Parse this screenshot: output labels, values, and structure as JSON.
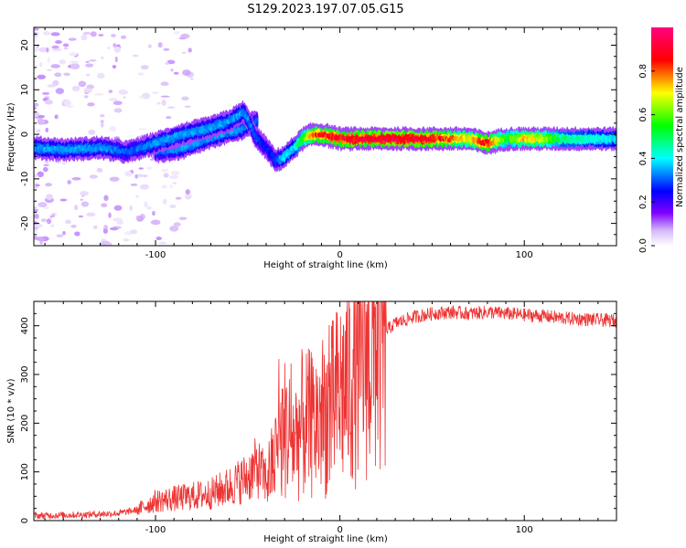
{
  "title": "S129.2023.197.07.05.G15",
  "chart_data": [
    {
      "type": "heatmap",
      "xlabel": "Height of straight line (km)",
      "ylabel": "Frequency (Hz)",
      "xlim": [
        -166,
        150
      ],
      "ylim": [
        -25,
        24
      ],
      "xticks": [
        -100,
        0,
        100
      ],
      "yticks": [
        -20,
        -10,
        0,
        10,
        20
      ],
      "colorbar": {
        "label": "Normalized spectral amplitude",
        "range": [
          0,
          1
        ],
        "ticks": [
          0.0,
          0.2,
          0.4,
          0.6,
          0.8
        ]
      },
      "ridge": {
        "x": [
          -166,
          -150,
          -130,
          -115,
          -100,
          -85,
          -70,
          -60,
          -52,
          -45,
          -40,
          -35,
          -30,
          -25,
          -20,
          -15,
          -10,
          0,
          10,
          30,
          50,
          70,
          80,
          90,
          100,
          110,
          120,
          150
        ],
        "y": [
          -3,
          -3.5,
          -3,
          -4,
          -2,
          0,
          1.5,
          3,
          5,
          -1,
          -3,
          -6,
          -5,
          -3,
          -1,
          0,
          0,
          -1,
          -1,
          -1,
          -1,
          -1,
          -2,
          -1,
          -1,
          -1,
          -1,
          -1
        ],
        "amplitude": [
          0.35,
          0.35,
          0.35,
          0.3,
          0.35,
          0.35,
          0.35,
          0.35,
          0.35,
          0.3,
          0.25,
          0.3,
          0.4,
          0.4,
          0.6,
          0.8,
          0.85,
          0.9,
          0.9,
          0.95,
          0.9,
          0.7,
          0.9,
          0.55,
          0.75,
          0.7,
          0.5,
          0.4
        ]
      },
      "branch": {
        "x": [
          -100,
          -85,
          -75,
          -65,
          -55,
          -45
        ],
        "y": [
          -4,
          -3,
          -1.5,
          0,
          1,
          3
        ],
        "amplitude": [
          0.3,
          0.35,
          0.35,
          0.35,
          0.35,
          0.3
        ]
      },
      "noise_region_x": [
        -166,
        -120
      ]
    },
    {
      "type": "line",
      "xlabel": "Height of straight line (km)",
      "ylabel": "SNR (10 * v/v)",
      "xlim": [
        -166,
        150
      ],
      "ylim": [
        0,
        450
      ],
      "xticks": [
        -100,
        0,
        100
      ],
      "yticks": [
        0,
        100,
        200,
        300,
        400
      ],
      "color": "#ee3333",
      "series": [
        {
          "x": [
            -166,
            -140,
            -120,
            -110,
            -100,
            -90,
            -80,
            -70,
            -60,
            -50,
            -45,
            -40,
            -35,
            -30,
            -25,
            -20,
            -15,
            -10,
            -5,
            0,
            5,
            10,
            15,
            20,
            25,
            30,
            40,
            50,
            60,
            70,
            80,
            90,
            100,
            110,
            120,
            130,
            140,
            150
          ],
          "values": [
            10,
            12,
            15,
            22,
            40,
            45,
            50,
            55,
            70,
            90,
            110,
            85,
            125,
            190,
            165,
            200,
            195,
            215,
            225,
            260,
            290,
            330,
            355,
            375,
            390,
            405,
            418,
            425,
            428,
            425,
            428,
            425,
            422,
            420,
            416,
            414,
            412,
            410
          ]
        }
      ]
    }
  ]
}
